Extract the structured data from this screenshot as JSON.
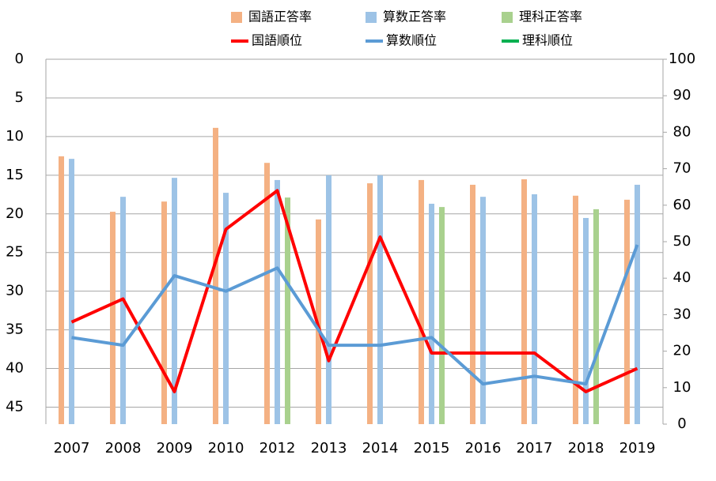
{
  "chart_data": {
    "type": "bar_line",
    "categories": [
      "2007",
      "2008",
      "2009",
      "2010",
      "2012",
      "2013",
      "2014",
      "2015",
      "2016",
      "2017",
      "2018",
      "2019"
    ],
    "series": [
      {
        "name": "国語正答率",
        "kind": "bar",
        "axis": "y2",
        "color": "#f4b183",
        "values": [
          73.4,
          58.2,
          61.0,
          81.2,
          71.6,
          56.1,
          66.0,
          66.9,
          65.6,
          67.1,
          62.6,
          61.5
        ]
      },
      {
        "name": "算数正答率",
        "kind": "bar",
        "axis": "y2",
        "color": "#9dc3e6",
        "values": [
          72.7,
          62.3,
          67.5,
          63.4,
          66.9,
          68.2,
          68.2,
          60.4,
          62.3,
          63.0,
          56.5,
          65.6
        ]
      },
      {
        "name": "理科正答率",
        "kind": "bar",
        "axis": "y2",
        "color": "#a9d18e",
        "values": [
          null,
          null,
          null,
          null,
          62.1,
          null,
          null,
          59.5,
          null,
          null,
          58.9,
          null
        ]
      },
      {
        "name": "国語順位",
        "kind": "line",
        "color": "#ff0000",
        "values": [
          34,
          31,
          43,
          22,
          17,
          39,
          23,
          38,
          38,
          38,
          43,
          40
        ]
      },
      {
        "name": "算数順位",
        "kind": "line",
        "color": "#5b9bd5",
        "values": [
          36,
          37,
          28,
          30,
          27,
          37,
          37,
          36,
          42,
          41,
          42,
          24
        ]
      },
      {
        "name": "理科順位",
        "kind": "line",
        "color": "#00b050",
        "values": [
          null,
          null,
          null,
          null,
          null,
          null,
          null,
          null,
          null,
          null,
          null,
          null
        ]
      }
    ],
    "ylim": [
      47.2,
      0
    ],
    "yticks": [
      0,
      5,
      10,
      15,
      20,
      25,
      30,
      35,
      40,
      45
    ],
    "y2lim": [
      0,
      100
    ],
    "y2ticks": [
      0,
      10,
      20,
      30,
      40,
      50,
      60,
      70,
      80,
      90,
      100
    ],
    "grid": true
  }
}
